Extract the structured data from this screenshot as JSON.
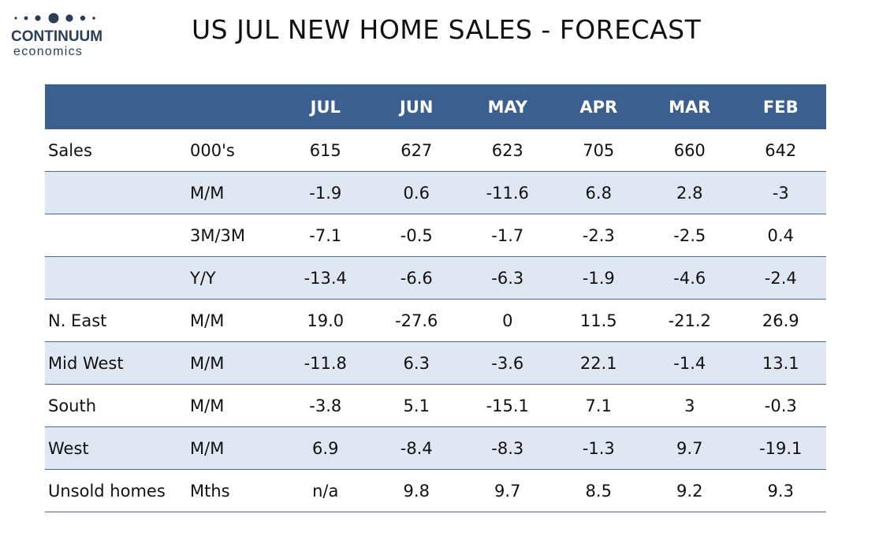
{
  "logo": {
    "brand": "CONTINUUM",
    "sub": "economics",
    "color": "#2b3e55"
  },
  "title": "US JUL NEW HOME SALES - FORECAST",
  "chart_data": {
    "type": "table",
    "title": "US JUL NEW HOME SALES - FORECAST",
    "columns": [
      "",
      "",
      "JUL",
      "JUN",
      "MAY",
      "APR",
      "MAR",
      "FEB"
    ],
    "header_color": "#3b5f8f",
    "shade_color": "#dfe7f2",
    "rows": [
      {
        "label": "Sales",
        "unit": "000's",
        "values": [
          "615",
          "627",
          "623",
          "705",
          "660",
          "642"
        ],
        "shaded": false
      },
      {
        "label": "",
        "unit": "M/M",
        "values": [
          "-1.9",
          "0.6",
          "-11.6",
          "6.8",
          "2.8",
          "-3"
        ],
        "shaded": true
      },
      {
        "label": "",
        "unit": "3M/3M",
        "values": [
          "-7.1",
          "-0.5",
          "-1.7",
          "-2.3",
          "-2.5",
          "0.4"
        ],
        "shaded": false
      },
      {
        "label": "",
        "unit": "Y/Y",
        "values": [
          "-13.4",
          "-6.6",
          "-6.3",
          "-1.9",
          "-4.6",
          "-2.4"
        ],
        "shaded": true
      },
      {
        "label": "N. East",
        "unit": "M/M",
        "values": [
          "19.0",
          "-27.6",
          "0",
          "11.5",
          "-21.2",
          "26.9"
        ],
        "shaded": false
      },
      {
        "label": "Mid West",
        "unit": "M/M",
        "values": [
          "-11.8",
          "6.3",
          "-3.6",
          "22.1",
          "-1.4",
          "13.1"
        ],
        "shaded": true
      },
      {
        "label": "South",
        "unit": "M/M",
        "values": [
          "-3.8",
          "5.1",
          "-15.1",
          "7.1",
          "3",
          "-0.3"
        ],
        "shaded": false
      },
      {
        "label": "West",
        "unit": "M/M",
        "values": [
          "6.9",
          "-8.4",
          "-8.3",
          "-1.3",
          "9.7",
          "-19.1"
        ],
        "shaded": true
      },
      {
        "label": "Unsold homes",
        "unit": "Mths",
        "values": [
          "n/a",
          "9.8",
          "9.7",
          "8.5",
          "9.2",
          "9.3"
        ],
        "shaded": false
      }
    ]
  }
}
